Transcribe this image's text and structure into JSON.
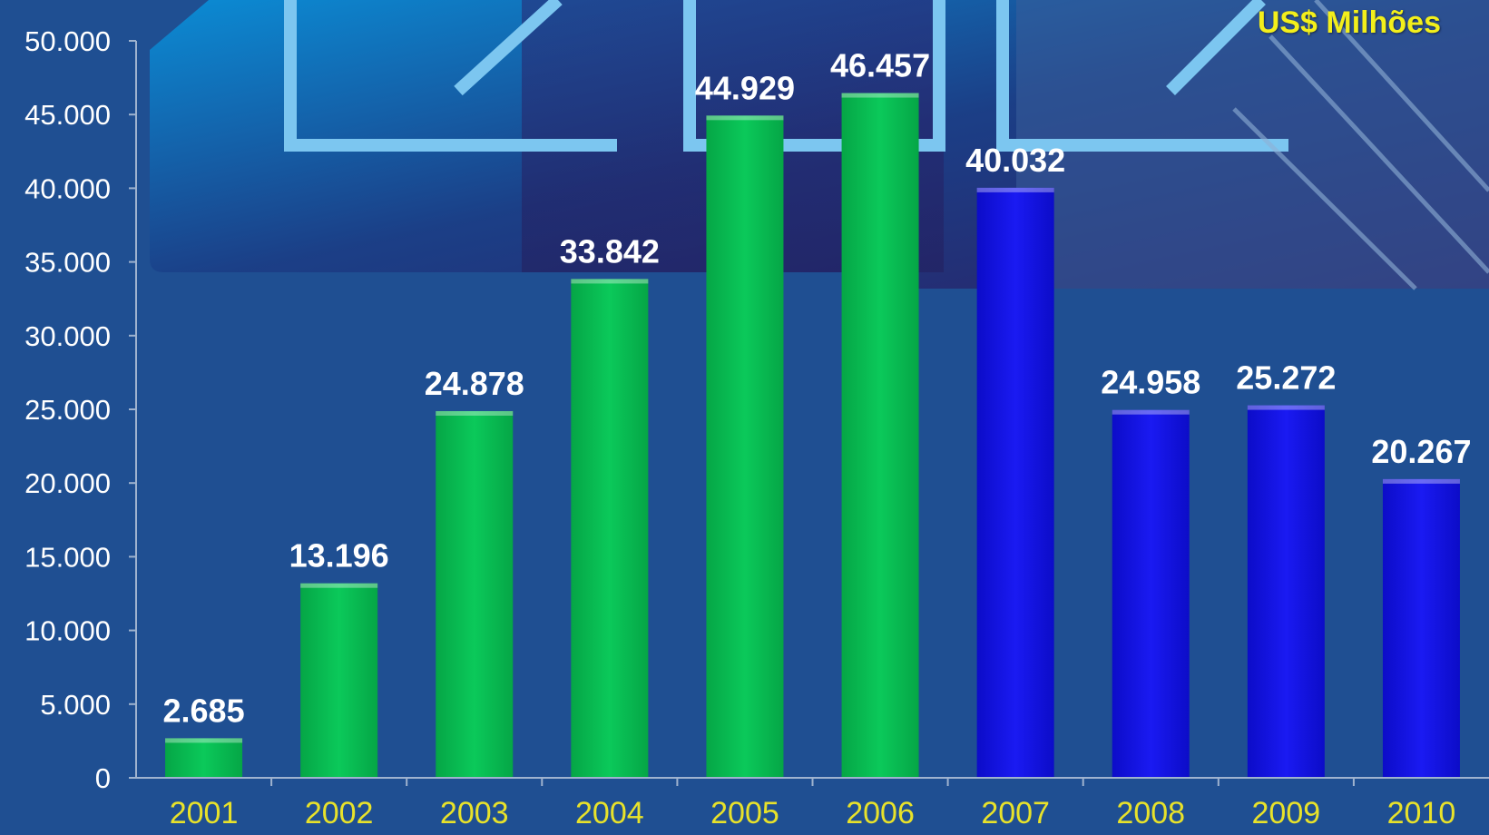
{
  "chart_data": {
    "type": "bar",
    "unit_label": "US$ Milhões",
    "categories": [
      "2001",
      "2002",
      "2003",
      "2004",
      "2005",
      "2006",
      "2007",
      "2008",
      "2009",
      "2010"
    ],
    "values": [
      2685,
      13196,
      24878,
      33842,
      44929,
      46457,
      40032,
      24958,
      25272,
      20267
    ],
    "value_labels": [
      "2.685",
      "13.196",
      "24.878",
      "33.842",
      "44.929",
      "46.457",
      "40.032",
      "24.958",
      "25.272",
      "20.267"
    ],
    "bar_colors": [
      "#06b94f",
      "#06b94f",
      "#06b94f",
      "#06b94f",
      "#06b94f",
      "#06b94f",
      "#1010e6",
      "#1010e6",
      "#1010e6",
      "#1010e6"
    ],
    "ylim": [
      0,
      50000
    ],
    "yticks": [
      0,
      5000,
      10000,
      15000,
      20000,
      25000,
      30000,
      35000,
      40000,
      45000,
      50000
    ],
    "ytick_labels": [
      "0",
      "5.000",
      "10.000",
      "15.000",
      "20.000",
      "25.000",
      "30.000",
      "35.000",
      "40.000",
      "45.000",
      "50.000"
    ],
    "colors": {
      "background": "#1f4f92",
      "axis": "#9fb3cf",
      "tick_text": "#ffffff",
      "category_text": "#e8e22a",
      "value_text": "#ffffff",
      "unit_text": "#f3ef1b"
    }
  }
}
